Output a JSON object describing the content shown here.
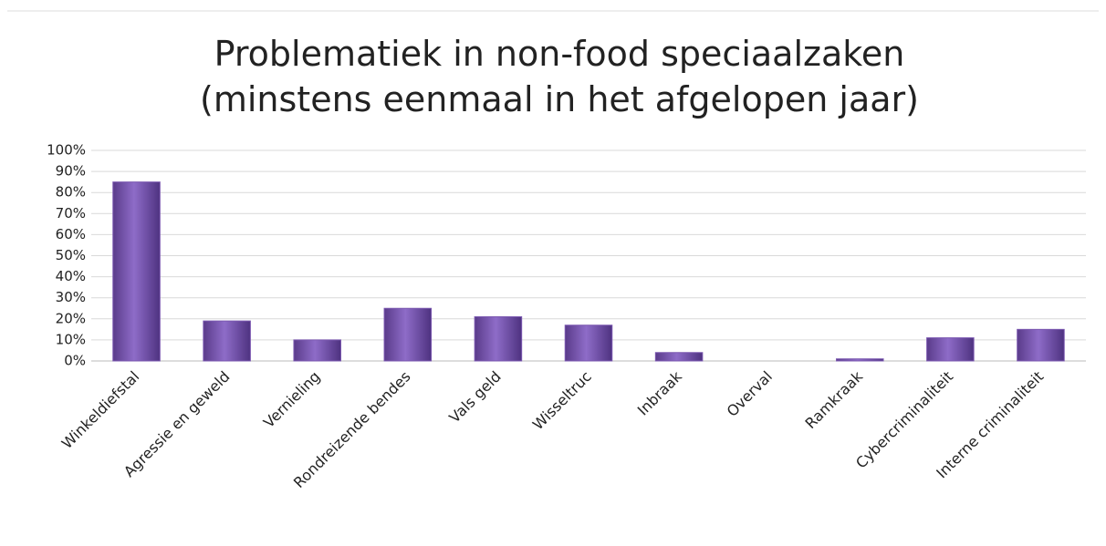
{
  "chart_data": {
    "type": "bar",
    "title": "Problematiek in non-food speciaalzaken",
    "subtitle": "(minstens eenmaal in het afgelopen jaar)",
    "categories": [
      "Winkeldiefstal",
      "Agressie en geweld",
      "Vernieling",
      "Rondreizende bendes",
      "Vals geld",
      "Wisseltruc",
      "Inbraak",
      "Overval",
      "Ramkraak",
      "Cybercriminaliteit",
      "Interne criminaliteit"
    ],
    "values": [
      85,
      19,
      10,
      25,
      21,
      17,
      4,
      0,
      1,
      11,
      15
    ],
    "color": "#7b58b0",
    "ylim": [
      0,
      100
    ],
    "yticks": [
      {
        "value": 0,
        "label": "0%"
      },
      {
        "value": 10,
        "label": "10%"
      },
      {
        "value": 20,
        "label": "20%"
      },
      {
        "value": 30,
        "label": "30%"
      },
      {
        "value": 40,
        "label": "40%"
      },
      {
        "value": 50,
        "label": "50%"
      },
      {
        "value": 60,
        "label": "60%"
      },
      {
        "value": 70,
        "label": "70%"
      },
      {
        "value": 80,
        "label": "80%"
      },
      {
        "value": 90,
        "label": "90%"
      },
      {
        "value": 100,
        "label": "100%"
      }
    ],
    "grid": true
  }
}
